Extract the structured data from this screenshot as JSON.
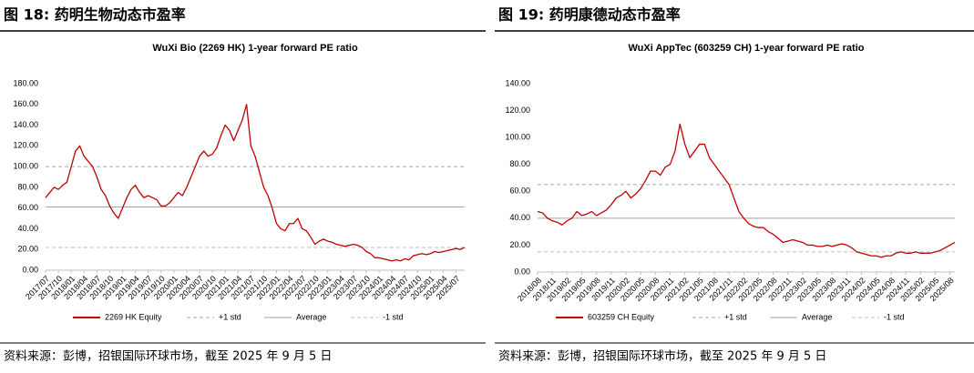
{
  "chart_data": [
    {
      "type": "line",
      "caption": "图 18: 药明生物动态市盈率",
      "title": "WuXi Bio (2269 HK) 1-year forward PE ratio",
      "source": "资料来源：彭博，招银国际环球市场，截至 2025 年 9 月 5 日",
      "x": [
        "2017/07",
        "2017/08",
        "2017/09",
        "2017/10",
        "2017/11",
        "2017/12",
        "2018/01",
        "2018/02",
        "2018/03",
        "2018/04",
        "2018/05",
        "2018/06",
        "2018/07",
        "2018/08",
        "2018/09",
        "2018/10",
        "2018/11",
        "2018/12",
        "2019/01",
        "2019/02",
        "2019/03",
        "2019/04",
        "2019/05",
        "2019/06",
        "2019/07",
        "2019/08",
        "2019/09",
        "2019/10",
        "2019/11",
        "2019/12",
        "2020/01",
        "2020/02",
        "2020/03",
        "2020/04",
        "2020/05",
        "2020/06",
        "2020/07",
        "2020/08",
        "2020/09",
        "2020/10",
        "2020/11",
        "2020/12",
        "2021/01",
        "2021/02",
        "2021/03",
        "2021/04",
        "2021/05",
        "2021/06",
        "2021/07",
        "2021/08",
        "2021/09",
        "2021/10",
        "2021/11",
        "2021/12",
        "2022/01",
        "2022/02",
        "2022/03",
        "2022/04",
        "2022/05",
        "2022/06",
        "2022/07",
        "2022/08",
        "2022/09",
        "2022/10",
        "2022/11",
        "2022/12",
        "2023/01",
        "2023/02",
        "2023/03",
        "2023/04",
        "2023/05",
        "2023/06",
        "2023/07",
        "2023/08",
        "2023/09",
        "2023/10",
        "2023/11",
        "2023/12",
        "2024/01",
        "2024/02",
        "2024/03",
        "2024/04",
        "2024/05",
        "2024/06",
        "2024/07",
        "2024/08",
        "2024/09",
        "2024/10",
        "2024/11",
        "2024/12",
        "2025/01",
        "2025/02",
        "2025/03",
        "2025/04",
        "2025/05",
        "2025/06",
        "2025/07",
        "2025/08",
        "2025/09"
      ],
      "xticks": [
        "2017/07",
        "2017/10",
        "2018/01",
        "2018/04",
        "2018/07",
        "2018/10",
        "2019/01",
        "2019/04",
        "2019/07",
        "2019/10",
        "2020/01",
        "2020/04",
        "2020/07",
        "2020/10",
        "2021/01",
        "2021/04",
        "2021/07",
        "2021/10",
        "2022/01",
        "2022/04",
        "2022/07",
        "2022/10",
        "2023/01",
        "2023/04",
        "2023/07",
        "2023/10",
        "2024/01",
        "2024/04",
        "2024/07",
        "2024/10",
        "2025/01",
        "2025/04",
        "2025/07"
      ],
      "series": [
        {
          "name": "2269 HK Equity",
          "color": "#c00000",
          "values": [
            70,
            75,
            80,
            78,
            82,
            85,
            100,
            115,
            120,
            110,
            105,
            100,
            90,
            78,
            72,
            62,
            55,
            50,
            60,
            70,
            78,
            82,
            75,
            70,
            72,
            70,
            68,
            62,
            62,
            65,
            70,
            75,
            72,
            80,
            90,
            100,
            110,
            115,
            110,
            112,
            118,
            130,
            140,
            135,
            125,
            135,
            145,
            160,
            120,
            110,
            95,
            80,
            72,
            60,
            45,
            40,
            38,
            45,
            45,
            50,
            40,
            38,
            32,
            25,
            28,
            30,
            28,
            27,
            25,
            24,
            23,
            24,
            25,
            24,
            22,
            18,
            16,
            12,
            12,
            11,
            10,
            9,
            10,
            9,
            11,
            10,
            14,
            15,
            16,
            15,
            16,
            18,
            17,
            18,
            19,
            20,
            21,
            20,
            22
          ]
        }
      ],
      "reference_lines": [
        {
          "name": "+1 std",
          "value": 100,
          "color": "#a6a6a6",
          "dash": true
        },
        {
          "name": "Average",
          "value": 61,
          "color": "#a6a6a6",
          "dash": false
        },
        {
          "name": "-1 std",
          "value": 22,
          "color": "#bfbfbf",
          "dash": true
        }
      ],
      "ylim": [
        0,
        180
      ],
      "yticks": [
        {
          "value": 0,
          "label": "0.00"
        },
        {
          "value": 20,
          "label": "20.00"
        },
        {
          "value": 40,
          "label": "40.00"
        },
        {
          "value": 60,
          "label": "60.00"
        },
        {
          "value": 80,
          "label": "80.00"
        },
        {
          "value": 100,
          "label": "100.00"
        },
        {
          "value": 120,
          "label": "120.00"
        },
        {
          "value": 140,
          "label": "140.00"
        },
        {
          "value": 160,
          "label": "160.00"
        },
        {
          "value": 180,
          "label": "180.00"
        }
      ]
    },
    {
      "type": "line",
      "caption": "图 19: 药明康德动态市盈率",
      "title": "WuXi AppTec (603259 CH)  1-year forward PE ratio",
      "source": "资料来源：彭博，招银国际环球市场，截至 2025 年 9 月 5 日",
      "x": [
        "2018/08",
        "2018/09",
        "2018/10",
        "2018/11",
        "2018/12",
        "2019/01",
        "2019/02",
        "2019/03",
        "2019/04",
        "2019/05",
        "2019/06",
        "2019/07",
        "2019/08",
        "2019/09",
        "2019/10",
        "2019/11",
        "2019/12",
        "2020/01",
        "2020/02",
        "2020/03",
        "2020/04",
        "2020/05",
        "2020/06",
        "2020/07",
        "2020/08",
        "2020/09",
        "2020/10",
        "2020/11",
        "2020/12",
        "2021/01",
        "2021/02",
        "2021/03",
        "2021/04",
        "2021/05",
        "2021/06",
        "2021/07",
        "2021/08",
        "2021/09",
        "2021/10",
        "2021/11",
        "2021/12",
        "2022/01",
        "2022/02",
        "2022/03",
        "2022/04",
        "2022/05",
        "2022/06",
        "2022/07",
        "2022/08",
        "2022/09",
        "2022/10",
        "2022/11",
        "2022/12",
        "2023/01",
        "2023/02",
        "2023/03",
        "2023/04",
        "2023/05",
        "2023/06",
        "2023/07",
        "2023/08",
        "2023/09",
        "2023/10",
        "2023/11",
        "2023/12",
        "2024/01",
        "2024/02",
        "2024/03",
        "2024/04",
        "2024/05",
        "2024/06",
        "2024/07",
        "2024/08",
        "2024/09",
        "2024/10",
        "2024/11",
        "2024/12",
        "2025/01",
        "2025/02",
        "2025/03",
        "2025/04",
        "2025/05",
        "2025/06",
        "2025/07",
        "2025/08",
        "2025/09"
      ],
      "xticks": [
        "2018/08",
        "2018/11",
        "2019/02",
        "2019/05",
        "2019/08",
        "2019/11",
        "2020/02",
        "2020/05",
        "2020/08",
        "2020/11",
        "2021/02",
        "2021/05",
        "2021/08",
        "2021/11",
        "2022/02",
        "2022/05",
        "2022/08",
        "2022/11",
        "2023/02",
        "2023/05",
        "2023/08",
        "2023/11",
        "2024/02",
        "2024/05",
        "2024/08",
        "2024/11",
        "2025/02",
        "2025/05",
        "2025/08"
      ],
      "series": [
        {
          "name": "603259 CH Equity",
          "color": "#c00000",
          "values": [
            45,
            44,
            40,
            38,
            37,
            35,
            38,
            40,
            45,
            42,
            43,
            45,
            42,
            44,
            46,
            50,
            55,
            57,
            60,
            55,
            58,
            62,
            68,
            75,
            75,
            72,
            78,
            80,
            90,
            110,
            95,
            85,
            90,
            95,
            95,
            85,
            80,
            75,
            70,
            65,
            55,
            45,
            40,
            36,
            34,
            33,
            33,
            30,
            28,
            25,
            22,
            23,
            24,
            23,
            22,
            20,
            20,
            19,
            19,
            20,
            19,
            20,
            21,
            20,
            18,
            15,
            14,
            13,
            12,
            12,
            11,
            12,
            12,
            14,
            15,
            14,
            14,
            15,
            14,
            14,
            14,
            15,
            16,
            18,
            20,
            22
          ]
        }
      ],
      "reference_lines": [
        {
          "name": "+1 std",
          "value": 65,
          "color": "#a6a6a6",
          "dash": true
        },
        {
          "name": "Average",
          "value": 40,
          "color": "#a6a6a6",
          "dash": false
        },
        {
          "name": "-1 std",
          "value": 15,
          "color": "#bfbfbf",
          "dash": true
        }
      ],
      "ylim": [
        0,
        140
      ],
      "yticks": [
        {
          "value": 0,
          "label": "0.00"
        },
        {
          "value": 20,
          "label": "20.00"
        },
        {
          "value": 40,
          "label": "40.00"
        },
        {
          "value": 60,
          "label": "60.00"
        },
        {
          "value": 80,
          "label": "80.00"
        },
        {
          "value": 100,
          "label": "100.00"
        },
        {
          "value": 120,
          "label": "120.00"
        },
        {
          "value": 140,
          "label": "140.00"
        }
      ]
    }
  ]
}
